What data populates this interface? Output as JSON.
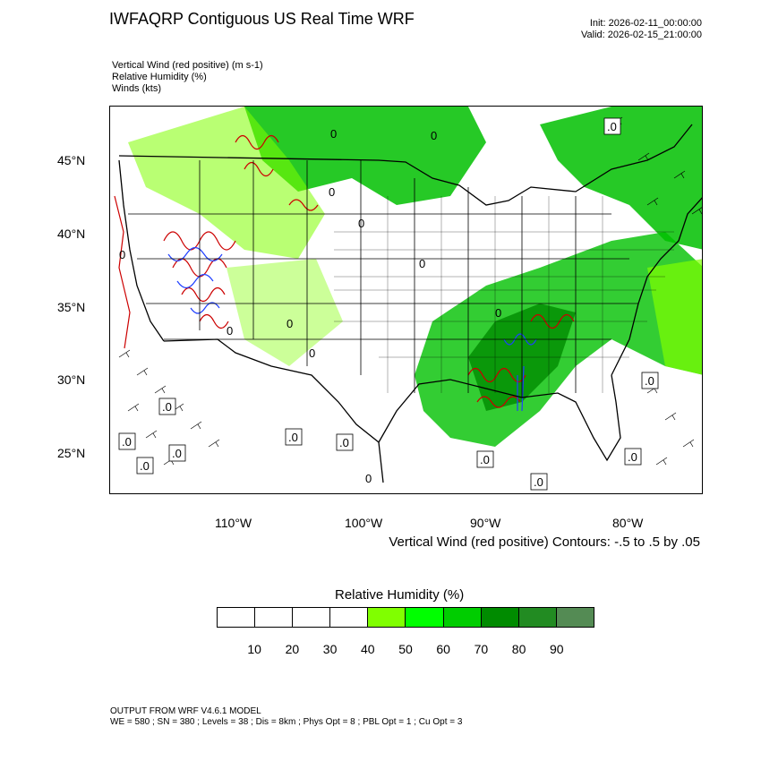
{
  "header": {
    "title": "IWFAQRP Contiguous US Real Time WRF",
    "init": "Init: 2026-02-11_00:00:00",
    "valid": "Valid: 2026-02-15_21:00:00"
  },
  "fields": [
    "Vertical Wind (red positive)   (m s-1)",
    "Relative Humidity   (%)",
    "Winds   (kts)"
  ],
  "map": {
    "lat_labels": [
      "45°N",
      "40°N",
      "35°N",
      "30°N",
      "25°N"
    ],
    "lon_labels": [
      "110°W",
      "100°W",
      "90°W",
      "80°W"
    ],
    "contour_label": "0",
    "contour_box_label": ".0",
    "colors": {
      "rh_light": "#7fff00",
      "rh_mid": "#00c000",
      "rh_dark": "#008b00",
      "updraft": "#cc0000",
      "downdraft": "#1f3fff",
      "boundaries": "#000000"
    }
  },
  "contour_note": "Vertical Wind (red positive) Contours: -.5 to .5 by .05",
  "colorbar": {
    "title": "Relative Humidity  (%)",
    "colors": [
      "#ffffff",
      "#ffffff",
      "#ffffff",
      "#ffffff",
      "#80ff00",
      "#00ff00",
      "#00cd00",
      "#008b00",
      "#228b22",
      "#548b54"
    ],
    "ticks": [
      "10",
      "20",
      "30",
      "40",
      "50",
      "60",
      "70",
      "80",
      "90"
    ]
  },
  "footer": {
    "line1": "OUTPUT FROM WRF V4.6.1 MODEL",
    "line2": "WE = 580 ; SN = 380 ; Levels = 38 ; Dis = 8km ; Phys Opt = 8 ; PBL Opt = 1 ; Cu Opt = 3"
  }
}
